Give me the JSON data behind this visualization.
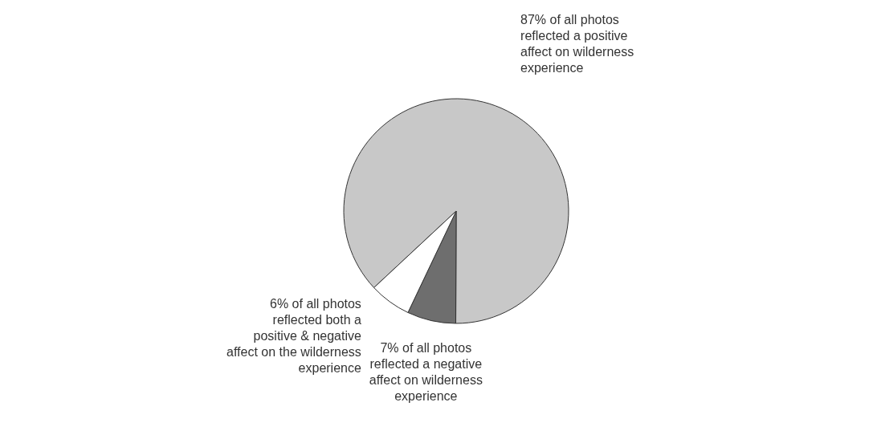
{
  "chart_data": {
    "type": "pie",
    "categories": [
      "of all photos reflected a positive affect on wilderness experience",
      "of all photos reflected a negative affect on wilderness experience",
      "of all photos reflected both a positive & negative affect on the wilderness experience"
    ],
    "values": [
      87,
      7,
      6
    ],
    "value_labels": [
      "87%",
      "7%",
      "6%"
    ],
    "colors": [
      "#c8c8c8",
      "#6e6e6e",
      "#ffffff"
    ]
  }
}
